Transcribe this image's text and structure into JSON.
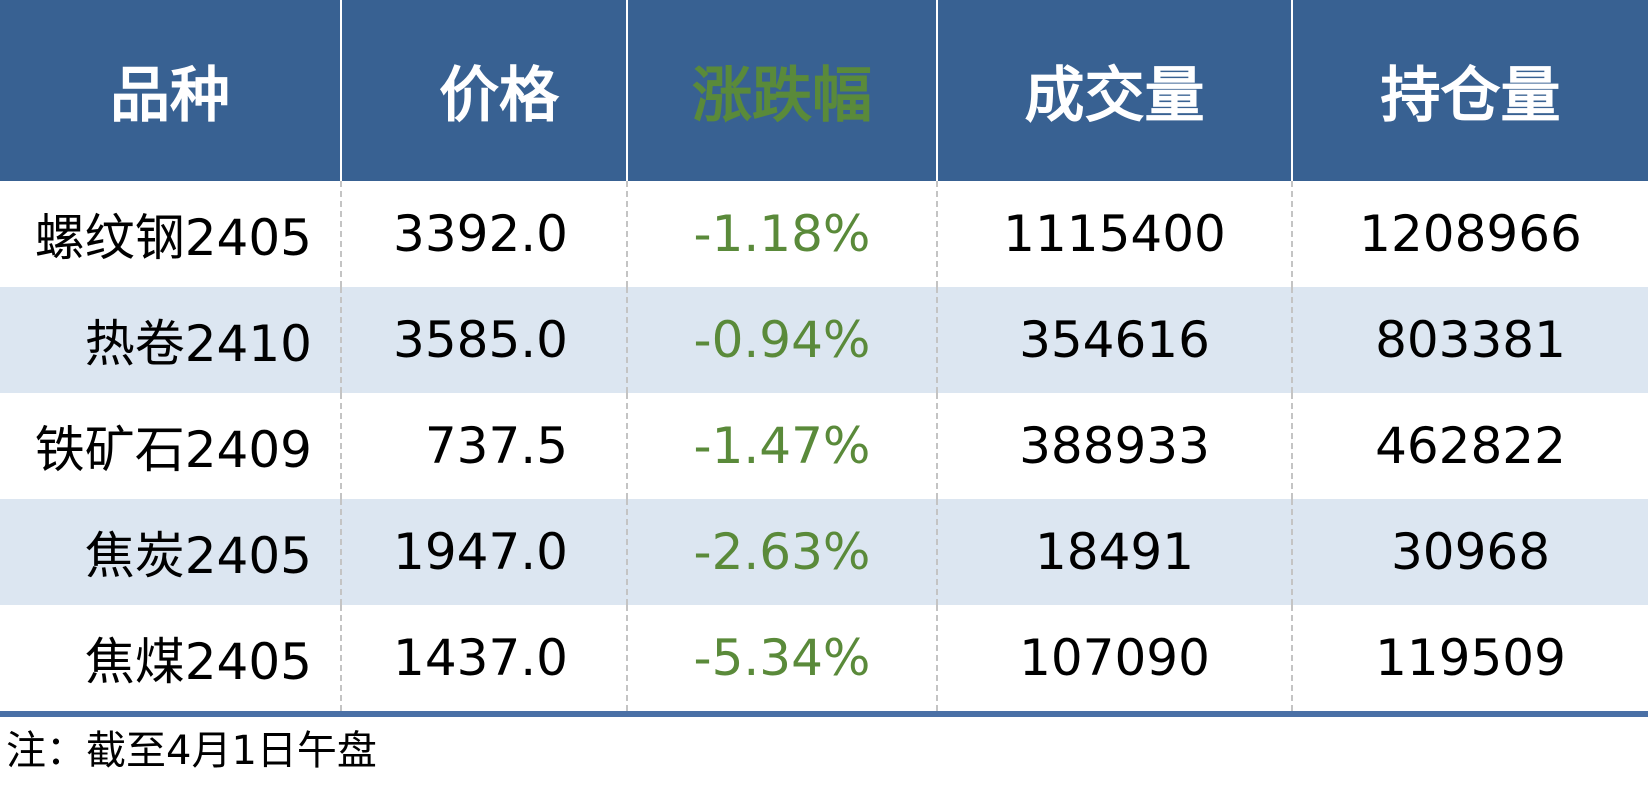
{
  "table": {
    "header": [
      "品种",
      "价格",
      "涨跌幅",
      "成交量",
      "持仓量"
    ],
    "rows": [
      [
        "螺纹钢2405",
        "3392.0",
        "-1.18%",
        "1115400",
        "1208966"
      ],
      [
        "热卷2410",
        "3585.0",
        "-0.94%",
        "354616",
        "803381"
      ],
      [
        "铁矿石2409",
        "737.5",
        "-1.47%",
        "388933",
        "462822"
      ],
      [
        "焦炭2405",
        "1947.0",
        "-2.63%",
        "18491",
        "30968"
      ],
      [
        "焦煤2405",
        "1437.0",
        "-5.34%",
        "107090",
        "119509"
      ]
    ]
  },
  "note": "注：截至4月1日午盘"
}
